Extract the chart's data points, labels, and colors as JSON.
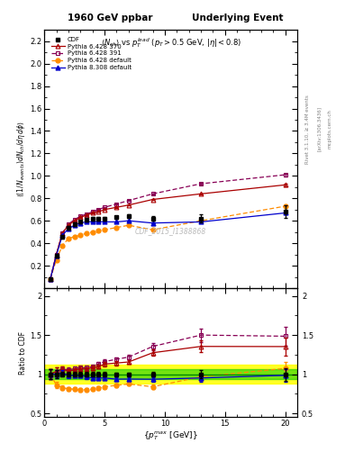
{
  "title_left": "1960 GeV ppbar",
  "title_right": "Underlying Event",
  "subtitle": "$\\langle N_{ch}\\rangle$ vs $p_T^{lead}$ ($p_T > 0.5$ GeV, $|\\eta| < 0.8$)",
  "watermark": "CDF_2015_I1388868",
  "right_label1": "Rivet 3.1.10, ≥ 3.4M events",
  "right_label2": "[arXiv:1306.3436]",
  "right_label3": "mcplots.cern.ch",
  "cdf_x": [
    0.5,
    1.0,
    1.5,
    2.0,
    2.5,
    3.0,
    3.5,
    4.0,
    4.5,
    5.0,
    6.0,
    7.0,
    9.0,
    13.0,
    20.0
  ],
  "cdf_y": [
    0.08,
    0.29,
    0.46,
    0.54,
    0.57,
    0.59,
    0.61,
    0.62,
    0.62,
    0.62,
    0.63,
    0.64,
    0.62,
    0.62,
    0.68
  ],
  "cdf_yerr": [
    0.005,
    0.015,
    0.015,
    0.015,
    0.015,
    0.015,
    0.015,
    0.015,
    0.015,
    0.015,
    0.015,
    0.015,
    0.02,
    0.035,
    0.055
  ],
  "p6_370_x": [
    0.5,
    1.0,
    1.5,
    2.0,
    2.5,
    3.0,
    3.5,
    4.0,
    4.5,
    5.0,
    6.0,
    7.0,
    9.0,
    13.0,
    20.0
  ],
  "p6_370_y": [
    0.08,
    0.3,
    0.49,
    0.56,
    0.6,
    0.63,
    0.65,
    0.67,
    0.68,
    0.7,
    0.72,
    0.74,
    0.79,
    0.84,
    0.92
  ],
  "p6_370_yerr": [
    0.001,
    0.002,
    0.002,
    0.002,
    0.002,
    0.002,
    0.002,
    0.002,
    0.002,
    0.002,
    0.003,
    0.003,
    0.004,
    0.006,
    0.01
  ],
  "p6_391_x": [
    0.5,
    1.0,
    1.5,
    2.0,
    2.5,
    3.0,
    3.5,
    4.0,
    4.5,
    5.0,
    6.0,
    7.0,
    9.0,
    13.0,
    20.0
  ],
  "p6_391_y": [
    0.08,
    0.3,
    0.49,
    0.57,
    0.61,
    0.64,
    0.66,
    0.68,
    0.7,
    0.72,
    0.75,
    0.78,
    0.84,
    0.93,
    1.01
  ],
  "p6_391_yerr": [
    0.001,
    0.002,
    0.002,
    0.002,
    0.002,
    0.002,
    0.002,
    0.002,
    0.002,
    0.003,
    0.003,
    0.003,
    0.004,
    0.007,
    0.012
  ],
  "p6_def_x": [
    0.5,
    1.0,
    1.5,
    2.0,
    2.5,
    3.0,
    3.5,
    4.0,
    4.5,
    5.0,
    6.0,
    7.0,
    9.0,
    13.0,
    20.0
  ],
  "p6_def_y": [
    0.08,
    0.25,
    0.38,
    0.44,
    0.46,
    0.47,
    0.49,
    0.5,
    0.51,
    0.52,
    0.54,
    0.56,
    0.52,
    0.6,
    0.73
  ],
  "p6_def_yerr": [
    0.001,
    0.002,
    0.002,
    0.002,
    0.002,
    0.002,
    0.002,
    0.002,
    0.002,
    0.002,
    0.003,
    0.003,
    0.004,
    0.005,
    0.01
  ],
  "p8_def_x": [
    0.5,
    1.0,
    1.5,
    2.0,
    2.5,
    3.0,
    3.5,
    4.0,
    4.5,
    5.0,
    6.0,
    7.0,
    9.0,
    13.0,
    20.0
  ],
  "p8_def_y": [
    0.08,
    0.29,
    0.47,
    0.53,
    0.56,
    0.58,
    0.59,
    0.59,
    0.59,
    0.59,
    0.59,
    0.6,
    0.58,
    0.59,
    0.67
  ],
  "p8_def_yerr": [
    0.001,
    0.002,
    0.002,
    0.002,
    0.002,
    0.002,
    0.002,
    0.002,
    0.002,
    0.002,
    0.002,
    0.002,
    0.003,
    0.004,
    0.007
  ],
  "col_cdf": "#000000",
  "col_p6_370": "#aa0000",
  "col_p6_391": "#880055",
  "col_p6_def": "#ff8c00",
  "col_p8_def": "#0000cc",
  "main_ylim": [
    0.0,
    2.3
  ],
  "main_yticks": [
    0.0,
    0.2,
    0.4,
    0.6,
    0.8,
    1.0,
    1.2,
    1.4,
    1.6,
    1.8,
    2.0,
    2.2
  ],
  "ratio_ylim": [
    0.45,
    2.1
  ],
  "ratio_yticks": [
    0.5,
    1.0,
    1.5,
    2.0
  ],
  "xlim": [
    0.0,
    21.0
  ],
  "xticks": [
    0,
    5,
    10,
    15,
    20
  ],
  "band_yellow": [
    0.88,
    1.12
  ],
  "band_green": [
    0.94,
    1.06
  ]
}
